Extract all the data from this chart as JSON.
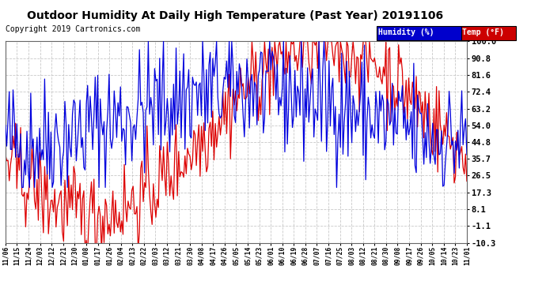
{
  "title": "Outdoor Humidity At Daily High Temperature (Past Year) 20191106",
  "copyright": "Copyright 2019 Cartronics.com",
  "ylabel_right_values": [
    100.0,
    90.8,
    81.6,
    72.4,
    63.2,
    54.0,
    44.8,
    35.7,
    26.5,
    17.3,
    8.1,
    -1.1,
    -10.3
  ],
  "ylim": [
    -10.3,
    100.0
  ],
  "background_color": "#ffffff",
  "plot_bg_color": "#ffffff",
  "grid_color": "#bbbbbb",
  "humidity_color": "#0000dd",
  "temp_color": "#dd0000",
  "legend_humidity_bg": "#0000cc",
  "legend_temp_bg": "#cc0000",
  "xtick_labels": [
    "11/06",
    "11/15",
    "11/24",
    "12/03",
    "12/12",
    "12/21",
    "12/30",
    "01/08",
    "01/17",
    "01/26",
    "02/04",
    "02/13",
    "02/22",
    "03/03",
    "03/12",
    "03/21",
    "03/30",
    "04/08",
    "04/17",
    "04/26",
    "05/05",
    "05/14",
    "05/23",
    "06/01",
    "06/10",
    "06/19",
    "06/28",
    "07/07",
    "07/16",
    "07/25",
    "08/03",
    "08/12",
    "08/21",
    "08/30",
    "09/08",
    "09/17",
    "09/26",
    "10/05",
    "10/14",
    "10/23",
    "11/01"
  ],
  "n_points": 366,
  "humidity_seed": 123,
  "temp_seed": 456
}
